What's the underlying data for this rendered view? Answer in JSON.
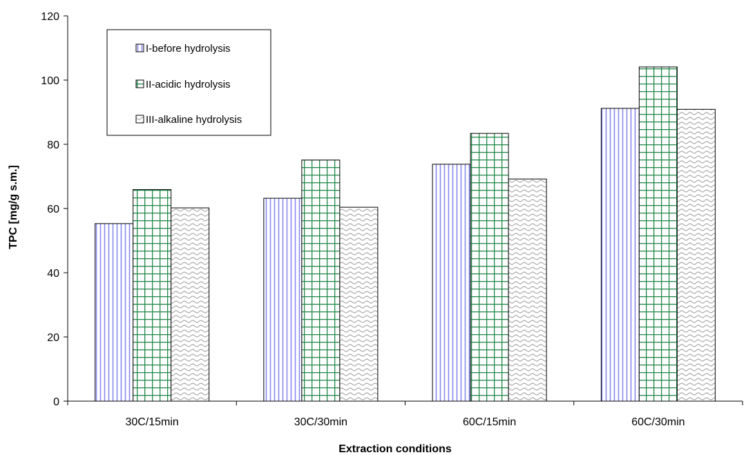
{
  "chart_data": {
    "type": "bar",
    "title": "",
    "xlabel": "Extraction conditions",
    "ylabel": "TPC [mg/g s.m.]",
    "categories": [
      "30C/15min",
      "30C/30min",
      "60C/15min",
      "60C/30min"
    ],
    "ylim": [
      0,
      120
    ],
    "yticks": [
      "0",
      "20",
      "40",
      "60",
      "80",
      "100",
      "120"
    ],
    "grid": false,
    "legend_position": "top-left",
    "series": [
      {
        "name": "I-before hydrolysis",
        "values": [
          55.3,
          63.2,
          73.8,
          91.2
        ],
        "pattern": "vertical-lines",
        "color": "#8888ee"
      },
      {
        "name": "II-acidic hydrolysis",
        "values": [
          65.9,
          75.1,
          83.4,
          104.1
        ],
        "pattern": "grid",
        "color": "#22884a"
      },
      {
        "name": "III-alkaline hydrolysis",
        "values": [
          60.2,
          60.4,
          69.2,
          90.9
        ],
        "pattern": "waves",
        "color": "#a8a8a8"
      }
    ]
  }
}
